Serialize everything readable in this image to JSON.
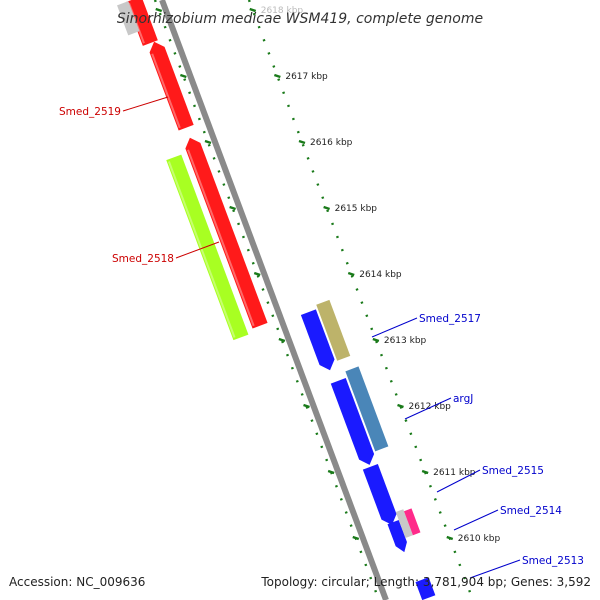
{
  "header": {
    "title": "Sinorhizobium medicae WSM419, complete genome"
  },
  "footer": {
    "accession": "Accession: NC_009636",
    "summary": "Topology: circular; Length: 3,781,904 bp; Genes: 3,592"
  },
  "ruler": {
    "ticks": [
      {
        "kbp": 2618,
        "label": "2618 kbp",
        "faded": true
      },
      {
        "kbp": 2617,
        "label": "2617 kbp"
      },
      {
        "kbp": 2616,
        "label": "2616 kbp"
      },
      {
        "kbp": 2615,
        "label": "2615 kbp"
      },
      {
        "kbp": 2614,
        "label": "2614 kbp"
      },
      {
        "kbp": 2613,
        "label": "2613 kbp"
      },
      {
        "kbp": 2612,
        "label": "2612 kbp"
      },
      {
        "kbp": 2611,
        "label": "2611 kbp"
      },
      {
        "kbp": 2610,
        "label": "2610 kbp"
      }
    ]
  },
  "genes": [
    {
      "name": "Smed_2519",
      "color": "#cc0000",
      "strand": "reverse",
      "labeled": true
    },
    {
      "name": "Smed_2518",
      "color": "#cc0000",
      "strand": "reverse",
      "labeled": true
    },
    {
      "name": "Smed_2517",
      "color": "#0000cc",
      "strand": "forward",
      "labeled": true
    },
    {
      "name": "argJ",
      "color": "#0000cc",
      "strand": "forward",
      "labeled": true
    },
    {
      "name": "Smed_2515",
      "color": "#0000cc",
      "strand": "forward",
      "labeled": true
    },
    {
      "name": "Smed_2514",
      "color": "#0000cc",
      "strand": "forward",
      "labeled": true
    },
    {
      "name": "Smed_2513",
      "color": "#0000cc",
      "strand": "forward",
      "labeled": true
    }
  ],
  "colors": {
    "backbone": "#8a8a8a",
    "tick": "#1a7a1a",
    "forward_label": "#0000cc",
    "reverse_label": "#cc0000",
    "red_feature": "#ff1a1a",
    "green_feature": "#a8ff22",
    "blue_feature": "#1a1aff",
    "olive_feature": "#bdb36a",
    "steel_feature": "#4a86b8",
    "pink_feature": "#ff2a8a",
    "grey_feature": "#c8c8c8"
  }
}
